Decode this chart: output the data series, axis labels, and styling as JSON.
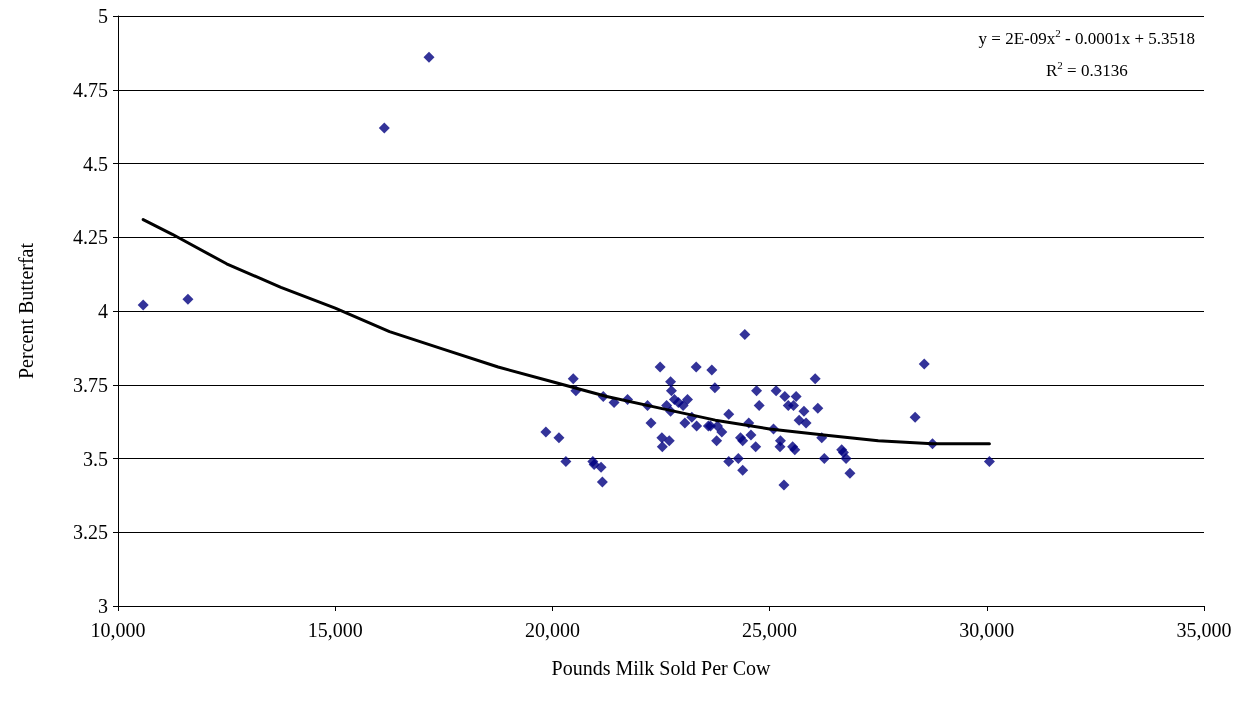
{
  "chart_data": {
    "type": "scatter",
    "xlabel": "Pounds Milk Sold Per Cow",
    "ylabel": "Percent Butterfat",
    "xlim": [
      10000,
      35000
    ],
    "xticks": [
      {
        "value": 10000,
        "label": "10,000"
      },
      {
        "value": 15000,
        "label": "15,000"
      },
      {
        "value": 20000,
        "label": "20,000"
      },
      {
        "value": 25000,
        "label": "25,000"
      },
      {
        "value": 30000,
        "label": "30,000"
      },
      {
        "value": 35000,
        "label": "35,000"
      }
    ],
    "ylim": [
      3,
      5
    ],
    "yticks": [
      3,
      3.25,
      3.5,
      3.75,
      4,
      4.25,
      4.5,
      4.75,
      5
    ],
    "grid": "y",
    "marker": "diamond",
    "annotations": [
      "y = 2E-09x$^{2}$ - 0.0001x + 5.3518",
      "R$^{2}$ = 0.3136"
    ],
    "series": [
      {
        "color": "#000080",
        "x": [
          10580,
          11610,
          16130,
          17160,
          19850,
          20150,
          20310,
          20480,
          20540,
          20930,
          20960,
          21120,
          21150,
          21170,
          21420,
          21730,
          22190,
          22270,
          22480,
          22520,
          22530,
          22690,
          22630,
          22720,
          22740,
          22720,
          22810,
          22900,
          23010,
          23110,
          23050,
          23210,
          23320,
          23310,
          23670,
          23740,
          23590,
          23640,
          23800,
          23900,
          23780,
          24060,
          24060,
          24280,
          24330,
          24380,
          24380,
          24570,
          24680,
          24700,
          24760,
          24520,
          24430,
          28560,
          28350,
          28750,
          30060,
          26050,
          26110,
          26200,
          26260,
          26660,
          26700,
          26760,
          26850,
          25150,
          25350,
          25430,
          25550,
          25610,
          25790,
          25680,
          25840,
          25090,
          25250,
          25240,
          25530,
          25580,
          25330
        ],
        "values": [
          4.02,
          4.04,
          4.62,
          4.86,
          3.59,
          3.57,
          3.49,
          3.77,
          3.73,
          3.49,
          3.48,
          3.47,
          3.42,
          3.71,
          3.69,
          3.7,
          3.68,
          3.62,
          3.81,
          3.57,
          3.54,
          3.56,
          3.68,
          3.76,
          3.73,
          3.66,
          3.7,
          3.69,
          3.68,
          3.7,
          3.62,
          3.64,
          3.61,
          3.81,
          3.8,
          3.74,
          3.61,
          3.61,
          3.61,
          3.59,
          3.56,
          3.65,
          3.49,
          3.5,
          3.57,
          3.56,
          3.46,
          3.58,
          3.54,
          3.73,
          3.68,
          3.62,
          3.92,
          3.82,
          3.64,
          3.55,
          3.49,
          3.77,
          3.67,
          3.57,
          3.5,
          3.53,
          3.52,
          3.5,
          3.45,
          3.73,
          3.71,
          3.68,
          3.68,
          3.71,
          3.66,
          3.63,
          3.62,
          3.6,
          3.56,
          3.54,
          3.54,
          3.53,
          3.41
        ]
      },
      {
        "type": "line",
        "color": "#000000",
        "marker": "none",
        "x": [
          10580,
          11250,
          12500,
          13750,
          15000,
          16250,
          17500,
          18750,
          20000,
          21250,
          22500,
          23750,
          25000,
          26250,
          27500,
          28750,
          30060
        ],
        "values": [
          4.31,
          4.26,
          4.16,
          4.08,
          4.01,
          3.93,
          3.87,
          3.81,
          3.76,
          3.71,
          3.67,
          3.63,
          3.6,
          3.58,
          3.56,
          3.55,
          3.55
        ]
      }
    ]
  }
}
